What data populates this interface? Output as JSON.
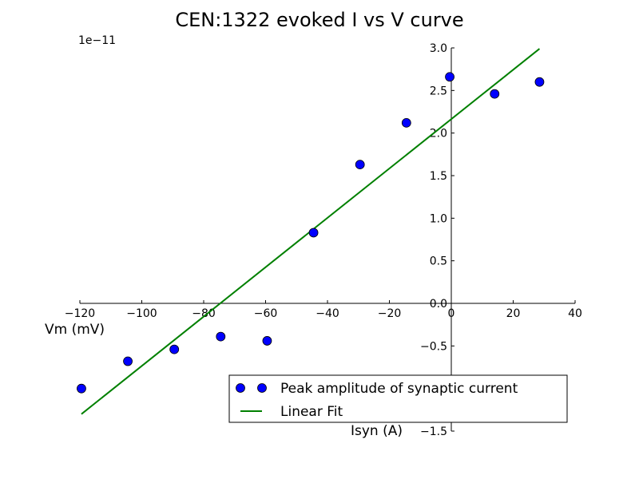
{
  "chart_data": {
    "type": "scatter",
    "title": "CEN:1322 evoked I vs V curve",
    "xlabel": "Vm (mV)",
    "ylabel": "Isyn (A)",
    "y_offset_label": "1e−11",
    "xlim": [
      -120,
      40
    ],
    "ylim": [
      -1.5,
      3.0
    ],
    "xticks": [
      -120,
      -100,
      -80,
      -60,
      -40,
      -20,
      0,
      20,
      40
    ],
    "xtick_labels": [
      "−120",
      "−100",
      "−80",
      "−60",
      "−40",
      "−20",
      "0",
      "20",
      "40"
    ],
    "yticks": [
      -1.5,
      -1.0,
      -0.5,
      0.0,
      0.5,
      1.0,
      1.5,
      2.0,
      2.5,
      3.0
    ],
    "ytick_labels": [
      "−1.5",
      "−1.0",
      "−0.5",
      "0.0",
      "0.5",
      "1.0",
      "1.5",
      "2.0",
      "2.5",
      "3.0"
    ],
    "grid": false,
    "legend_position": "lower-right",
    "series": [
      {
        "name": "Peak amplitude of synaptic current",
        "kind": "markers",
        "color": "#0000ff",
        "x": [
          -119.5,
          -104.5,
          -89.5,
          -74.5,
          -59.5,
          -44.5,
          -29.5,
          -14.5,
          -0.5,
          14,
          28.5
        ],
        "y": [
          -1.0,
          -0.68,
          -0.54,
          -0.39,
          -0.44,
          0.83,
          1.63,
          2.12,
          2.66,
          2.46,
          2.6
        ]
      },
      {
        "name": "Linear Fit",
        "kind": "line",
        "color": "#008000",
        "x": [
          -119.5,
          28.5
        ],
        "y": [
          -1.3,
          2.99
        ]
      }
    ]
  }
}
